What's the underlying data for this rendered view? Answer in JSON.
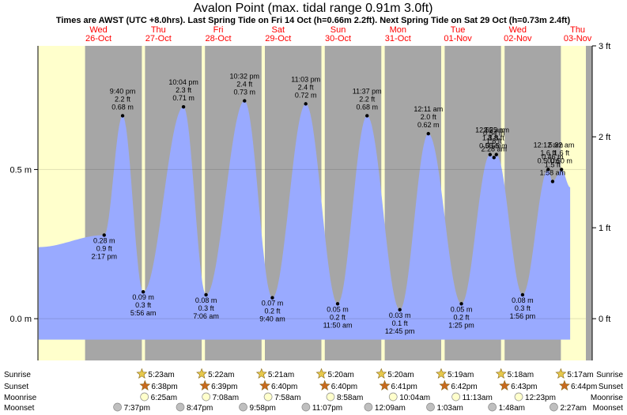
{
  "chart_data": {
    "type": "area",
    "title": "Avalon Point (max. tidal range 0.91m 3.0ft)",
    "subtitle": "Times are AWST (UTC +8.0hrs). Last Spring Tide on Fri 14 Oct (h=0.66m 2.2ft). Next Spring Tide on Sat 29 Oct (h=0.73m 2.4ft)",
    "days": [
      {
        "dow": "Wed",
        "date": "26-Oct"
      },
      {
        "dow": "Thu",
        "date": "27-Oct"
      },
      {
        "dow": "Fri",
        "date": "28-Oct"
      },
      {
        "dow": "Sat",
        "date": "29-Oct"
      },
      {
        "dow": "Sun",
        "date": "30-Oct"
      },
      {
        "dow": "Mon",
        "date": "31-Oct"
      },
      {
        "dow": "Tue",
        "date": "01-Nov"
      },
      {
        "dow": "Wed",
        "date": "02-Nov"
      },
      {
        "dow": "Thu",
        "date": "03-Nov"
      }
    ],
    "y_left_ticks": [
      {
        "v": 0.0,
        "label": "0.0 m"
      },
      {
        "v": 0.5,
        "label": "0.5 m"
      }
    ],
    "y_right_ticks": [
      {
        "v": 0.0,
        "label": "0 ft"
      },
      {
        "v": 0.3048,
        "label": "1 ft"
      },
      {
        "v": 0.6096,
        "label": "2 ft"
      },
      {
        "v": 0.9144,
        "label": "3 ft"
      }
    ],
    "ylim": [
      -0.14,
      0.9144
    ],
    "x_range_hours": [
      -12.25,
      207.3
    ],
    "night_shading": [
      {
        "start": 6.63,
        "end": 29.38
      },
      {
        "start": 30.65,
        "end": 53.37
      },
      {
        "start": 54.67,
        "end": 77.35
      },
      {
        "start": 78.67,
        "end": 101.33
      },
      {
        "start": 102.68,
        "end": 125.33
      },
      {
        "start": 126.7,
        "end": 149.32
      },
      {
        "start": 150.72,
        "end": 173.3
      },
      {
        "start": 174.73,
        "end": 197.28
      }
    ],
    "tides": [
      {
        "t": -12.0,
        "h": 0.24
      },
      {
        "t": 14.28,
        "h": 0.28,
        "labels": [
          "0.28 m",
          "0.9 ft",
          "2:17 pm"
        ]
      },
      {
        "t": 21.67,
        "h": 0.68,
        "labels": [
          "9:40 pm",
          "2.2 ft",
          "0.68 m"
        ]
      },
      {
        "t": 29.93,
        "h": 0.09,
        "labels": [
          "0.09 m",
          "0.3 ft",
          "5:56 am"
        ]
      },
      {
        "t": 46.07,
        "h": 0.71,
        "labels": [
          "10:04 pm",
          "2.3 ft",
          "0.71 m"
        ]
      },
      {
        "t": 55.1,
        "h": 0.08,
        "labels": [
          "0.08 m",
          "0.3 ft",
          "7:06 am"
        ]
      },
      {
        "t": 70.53,
        "h": 0.73,
        "labels": [
          "10:32 pm",
          "2.4 ft",
          "0.73 m"
        ]
      },
      {
        "t": 81.67,
        "h": 0.07,
        "labels": [
          "0.07 m",
          "0.2 ft",
          "9:40 am"
        ]
      },
      {
        "t": 95.05,
        "h": 0.72,
        "labels": [
          "11:03 pm",
          "2.4 ft",
          "0.72 m"
        ]
      },
      {
        "t": 107.83,
        "h": 0.05,
        "labels": [
          "0.05 m",
          "0.2 ft",
          "11:50 am"
        ]
      },
      {
        "t": 119.62,
        "h": 0.68,
        "labels": [
          "11:37 pm",
          "2.2 ft",
          "0.68 m"
        ]
      },
      {
        "t": 132.75,
        "h": 0.03,
        "labels": [
          "0.03 m",
          "0.1 ft",
          "12:45 pm"
        ]
      },
      {
        "t": 144.18,
        "h": 0.62,
        "labels": [
          "12:11 am",
          "2.0 ft",
          "0.62 m"
        ]
      },
      {
        "t": 157.42,
        "h": 0.05,
        "labels": [
          "0.05 m",
          "0.2 ft",
          "1:25 pm"
        ]
      },
      {
        "t": 168.92,
        "h": 0.55,
        "labels": [
          "12:55 am",
          "1.8 ft",
          "0.55 m"
        ]
      },
      {
        "t": 170.47,
        "h": 0.54,
        "labels": [
          "0.54 m",
          "1.8 ft",
          "2:28 am"
        ]
      },
      {
        "t": 171.42,
        "h": 0.55,
        "labels": [
          "3:25 am",
          "1.8 ft",
          "0.55 m"
        ]
      },
      {
        "t": 181.93,
        "h": 0.08,
        "labels": [
          "0.08 m",
          "0.3 ft",
          "1:56 pm"
        ]
      },
      {
        "t": 192.2,
        "h": 0.5,
        "labels": [
          "12:12 am",
          "1.6 ft",
          "0.50 m"
        ]
      },
      {
        "t": 193.97,
        "h": 0.46,
        "labels": [
          "0.46 m",
          "1.5 ft",
          "1:58 am"
        ]
      },
      {
        "t": 197.53,
        "h": 0.5,
        "labels": [
          "5:32 am",
          "1.6 ft",
          "0.50 m"
        ]
      },
      {
        "t": 201.0,
        "h": 0.44
      }
    ],
    "sunrise_label": "Sunrise",
    "sunset_label": "Sunset",
    "moonrise_label": "Moonrise",
    "moonset_label": "Moonset",
    "sunrise": [
      {
        "t": 29.38,
        "text": "5:23am"
      },
      {
        "t": 53.37,
        "text": "5:22am"
      },
      {
        "t": 77.35,
        "text": "5:21am"
      },
      {
        "t": 101.33,
        "text": "5:20am"
      },
      {
        "t": 125.33,
        "text": "5:20am"
      },
      {
        "t": 149.32,
        "text": "5:19am"
      },
      {
        "t": 173.3,
        "text": "5:18am"
      },
      {
        "t": 197.28,
        "text": "5:17am"
      }
    ],
    "sunset": [
      {
        "t": 30.63,
        "text": "6:38pm"
      },
      {
        "t": 54.65,
        "text": "6:39pm"
      },
      {
        "t": 78.67,
        "text": "6:40pm"
      },
      {
        "t": 102.67,
        "text": "6:40pm"
      },
      {
        "t": 126.68,
        "text": "6:41pm"
      },
      {
        "t": 150.7,
        "text": "6:42pm"
      },
      {
        "t": 174.72,
        "text": "6:43pm"
      },
      {
        "t": 198.73,
        "text": "6:44pm"
      }
    ],
    "moonrise": [
      {
        "t": 30.42,
        "text": "6:25am"
      },
      {
        "t": 55.13,
        "text": "7:08am"
      },
      {
        "t": 79.97,
        "text": "7:58am"
      },
      {
        "t": 104.97,
        "text": "8:58am"
      },
      {
        "t": 130.07,
        "text": "10:04am"
      },
      {
        "t": 155.22,
        "text": "11:13am"
      },
      {
        "t": 180.38,
        "text": "12:23pm"
      }
    ],
    "moonset": [
      {
        "t": 19.62,
        "text": "7:37pm"
      },
      {
        "t": 44.78,
        "text": "8:47pm"
      },
      {
        "t": 69.97,
        "text": "9:58pm"
      },
      {
        "t": 95.12,
        "text": "11:07pm"
      },
      {
        "t": 120.15,
        "text": "12:09am"
      },
      {
        "t": 145.05,
        "text": "1:03am"
      },
      {
        "t": 169.8,
        "text": "1:48am"
      },
      {
        "t": 194.45,
        "text": "2:27am"
      }
    ],
    "colors": {
      "day": "#ffffcc",
      "night": "#a6a6a6",
      "water": "#99aaff",
      "day_label": "#ff0000",
      "sun_star": "#e6c84b",
      "sunset_star": "#c86a1e",
      "moonrise_disc": "#ffffcc",
      "moonset_disc": "#bfbfbf"
    },
    "grid": true
  }
}
